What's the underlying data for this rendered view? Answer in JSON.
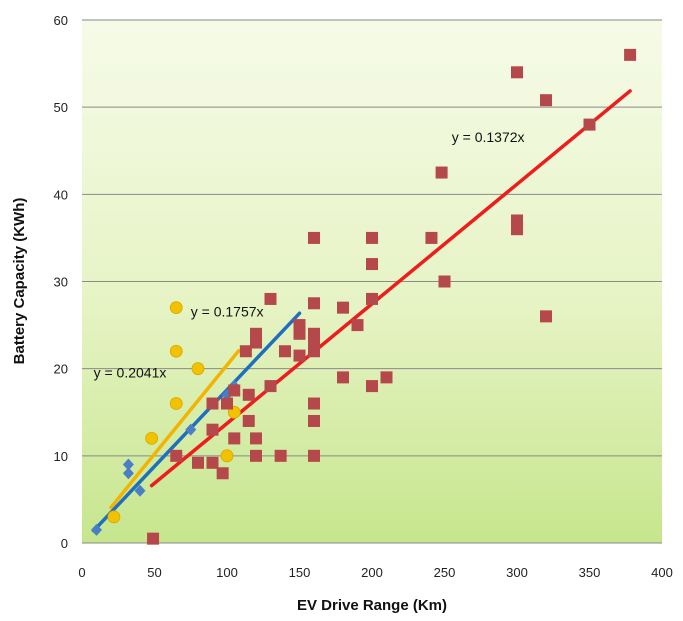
{
  "chart_data": {
    "type": "scatter",
    "title": "",
    "xlabel": "EV Drive Range  (Km)",
    "ylabel": "Battery Capacity  (KWh)",
    "xlim": [
      0,
      400
    ],
    "ylim": [
      0,
      60
    ],
    "x_ticks": [
      0,
      50,
      100,
      150,
      200,
      250,
      300,
      350,
      400
    ],
    "y_ticks": [
      0,
      10,
      20,
      30,
      40,
      50,
      60
    ],
    "grid": "horizontal",
    "background": "light green gradient",
    "series": [
      {
        "marker": "diamond",
        "color": "#4a7fc8",
        "points": [
          [
            10,
            1.5
          ],
          [
            32,
            9
          ],
          [
            32,
            8
          ],
          [
            40,
            6
          ],
          [
            65,
            10
          ],
          [
            75,
            13
          ],
          [
            90,
            16
          ],
          [
            100,
            17
          ],
          [
            105,
            18
          ]
        ]
      },
      {
        "marker": "circle",
        "color": "#f2c200",
        "points": [
          [
            22,
            3
          ],
          [
            48,
            12
          ],
          [
            65,
            27
          ],
          [
            65,
            22
          ],
          [
            65,
            16
          ],
          [
            80,
            20
          ],
          [
            100,
            10
          ],
          [
            105,
            15
          ]
        ]
      },
      {
        "marker": "square",
        "color": "#b5484a",
        "points": [
          [
            49,
            0.5
          ],
          [
            65,
            10
          ],
          [
            80,
            9.2
          ],
          [
            90,
            9.2
          ],
          [
            90,
            13
          ],
          [
            90,
            16
          ],
          [
            97,
            8
          ],
          [
            100,
            16
          ],
          [
            105,
            12
          ],
          [
            105,
            17.5
          ],
          [
            113,
            22
          ],
          [
            115,
            17
          ],
          [
            115,
            14
          ],
          [
            120,
            24
          ],
          [
            120,
            23
          ],
          [
            120,
            12
          ],
          [
            120,
            10
          ],
          [
            130,
            28
          ],
          [
            130,
            18
          ],
          [
            137,
            10
          ],
          [
            140,
            22
          ],
          [
            150,
            25
          ],
          [
            150,
            24
          ],
          [
            150,
            21.5
          ],
          [
            160,
            35
          ],
          [
            160,
            27.5
          ],
          [
            160,
            24
          ],
          [
            160,
            23
          ],
          [
            160,
            22
          ],
          [
            160,
            16
          ],
          [
            160,
            14
          ],
          [
            160,
            10
          ],
          [
            180,
            27
          ],
          [
            180,
            19
          ],
          [
            190,
            25
          ],
          [
            200,
            35
          ],
          [
            200,
            32
          ],
          [
            200,
            28
          ],
          [
            200,
            18
          ],
          [
            210,
            19
          ],
          [
            241,
            35
          ],
          [
            248,
            42.5
          ],
          [
            250,
            30
          ],
          [
            300,
            54
          ],
          [
            300,
            37
          ],
          [
            300,
            36
          ],
          [
            320,
            50.8
          ],
          [
            320,
            26
          ],
          [
            350,
            48
          ],
          [
            378,
            56
          ]
        ]
      }
    ],
    "trendlines": [
      {
        "label": "y = 0.2041x",
        "slope": 0.2041,
        "x_range": [
          20,
          108
        ],
        "color": "#f2b400",
        "label_pos": [
          8,
          19
        ]
      },
      {
        "label": "y = 0.1757x",
        "slope": 0.1757,
        "x_range": [
          8,
          150
        ],
        "color": "#1f6fbf",
        "label_pos": [
          75,
          26
        ]
      },
      {
        "label": "y = 0.1372x",
        "slope": 0.1372,
        "x_range": [
          48,
          378
        ],
        "color": "#ee1c1c",
        "label_pos": [
          255,
          46
        ]
      }
    ]
  }
}
